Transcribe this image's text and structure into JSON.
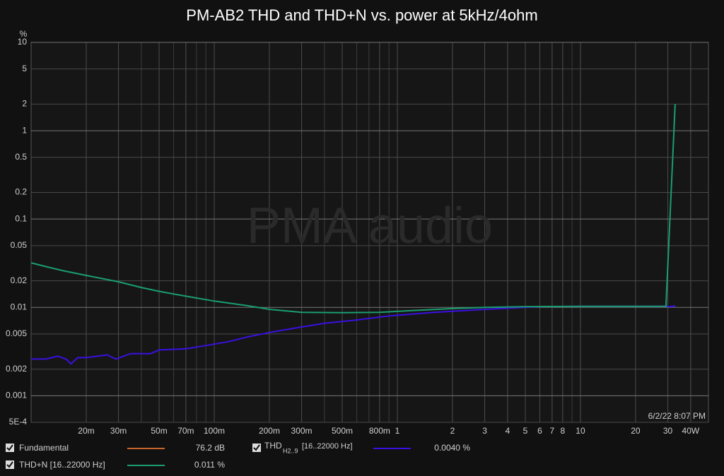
{
  "chart_data": {
    "type": "line",
    "title": "PM-AB2 THD and THD+N vs. power at 5kHz/4ohm",
    "y_label": "%",
    "watermark": "PMA audio",
    "timestamp": "6/2/22 8:07 PM",
    "x_log": true,
    "y_log": true,
    "grid": true,
    "minor_grid": true,
    "xlim": [
      0.01,
      50
    ],
    "ylim": [
      0.0005,
      10
    ],
    "xticks": [
      {
        "value": 0.02,
        "label": "20m"
      },
      {
        "value": 0.03,
        "label": "30m"
      },
      {
        "value": 0.05,
        "label": "50m"
      },
      {
        "value": 0.07,
        "label": "70m"
      },
      {
        "value": 0.1,
        "label": "100m"
      },
      {
        "value": 0.2,
        "label": "200m"
      },
      {
        "value": 0.3,
        "label": "300m"
      },
      {
        "value": 0.5,
        "label": "500m"
      },
      {
        "value": 0.8,
        "label": "800m"
      },
      1,
      2,
      3,
      4,
      5,
      6,
      7,
      8,
      10,
      20,
      30,
      {
        "value": 40,
        "label": "40W"
      }
    ],
    "yticks": [
      10,
      5,
      2,
      1,
      0.5,
      0.2,
      0.1,
      0.05,
      0.02,
      0.01,
      0.005,
      0.002,
      0.001,
      {
        "value": 0.0005,
        "label": "5E-4"
      }
    ],
    "series": [
      {
        "name": "THD+N [16..22000 Hz]",
        "color": "#1a9e70",
        "readout": "0.011 %",
        "x": [
          0.01,
          0.012,
          0.015,
          0.02,
          0.03,
          0.04,
          0.05,
          0.07,
          0.1,
          0.15,
          0.2,
          0.3,
          0.5,
          0.8,
          1.2,
          2,
          3,
          5,
          10,
          20,
          29.3,
          32.9
        ],
        "values": [
          0.032,
          0.029,
          0.026,
          0.023,
          0.0195,
          0.0168,
          0.0152,
          0.0134,
          0.0118,
          0.0105,
          0.0095,
          0.0088,
          0.0087,
          0.0088,
          0.0092,
          0.0097,
          0.01,
          0.0102,
          0.0103,
          0.0103,
          0.0103,
          2.0
        ]
      },
      {
        "name": "THD",
        "name_sub": "H2..9",
        "name_band": "[16..22000 Hz]",
        "color": "#3a10e0",
        "readout": "0.0040 %",
        "x": [
          0.01,
          0.012,
          0.014,
          0.0155,
          0.0165,
          0.018,
          0.02,
          0.023,
          0.026,
          0.029,
          0.035,
          0.045,
          0.05,
          0.07,
          0.09,
          0.12,
          0.15,
          0.2,
          0.3,
          0.4,
          0.6,
          0.9,
          1.5,
          2.5,
          4,
          6,
          10,
          20,
          30,
          31,
          33
        ],
        "values": [
          0.0026,
          0.0026,
          0.0028,
          0.0026,
          0.0023,
          0.0027,
          0.0027,
          0.0028,
          0.0029,
          0.0026,
          0.003,
          0.003,
          0.0033,
          0.0034,
          0.0037,
          0.0041,
          0.0046,
          0.0052,
          0.006,
          0.0066,
          0.0072,
          0.008,
          0.0087,
          0.0093,
          0.0098,
          0.0102,
          0.0103,
          0.0103,
          0.0103,
          0.0102,
          0.0104
        ]
      }
    ],
    "extra_legend": [
      {
        "name": "Fundamental",
        "color": "#c8642c",
        "readout": "76.2 dB"
      }
    ]
  }
}
